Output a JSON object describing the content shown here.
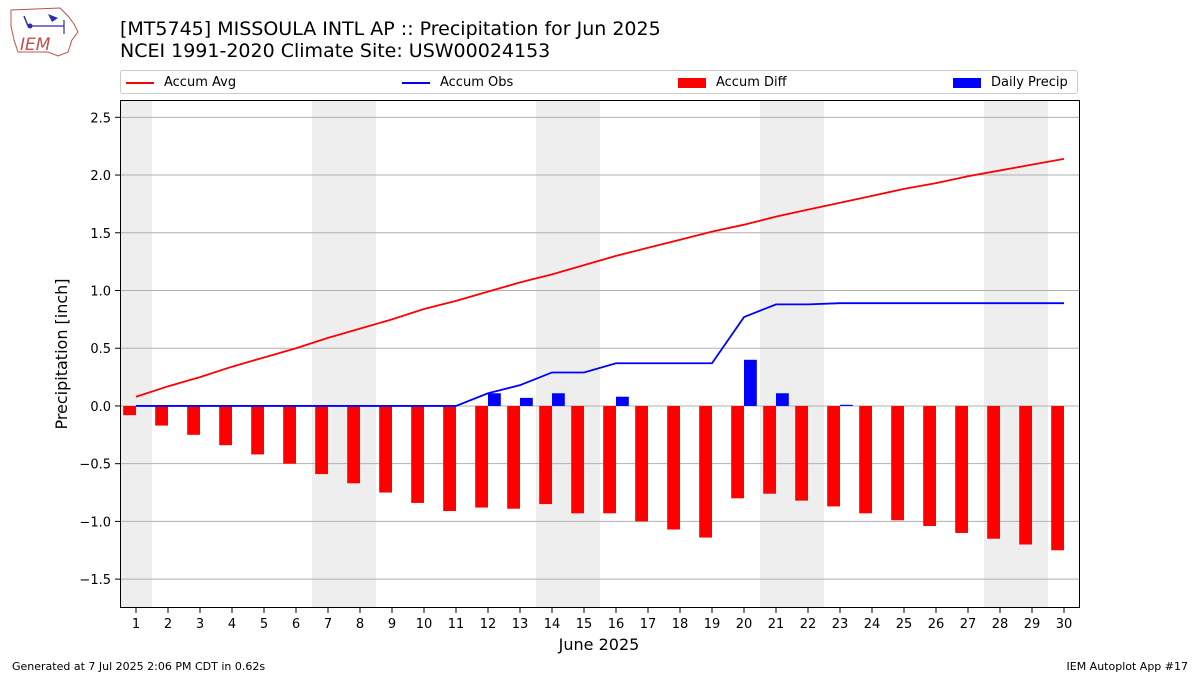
{
  "header": {
    "title_line1": "[MT5745] MISSOULA INTL AP :: Precipitation for Jun 2025",
    "title_line2": "NCEI 1991-2020 Climate Site: USW00024153"
  },
  "logo": {
    "text": "IEM"
  },
  "footer": {
    "left": "Generated at 7 Jul 2025 2:06 PM CDT in 0.62s",
    "right": "IEM Autoplot App #17"
  },
  "legend": [
    {
      "label": "Accum Avg",
      "kind": "line",
      "color": "#ff0000"
    },
    {
      "label": "Accum Obs",
      "kind": "line",
      "color": "#0000ff"
    },
    {
      "label": "Accum Diff",
      "kind": "bar",
      "color": "#ff0000"
    },
    {
      "label": "Daily Precip",
      "kind": "bar",
      "color": "#0000ff"
    }
  ],
  "chart_data": {
    "type": "bar",
    "xlabel": "June 2025",
    "ylabel": "Precipitation [inch]",
    "xlim": [
      0.5,
      30.5
    ],
    "ylim": [
      -1.75,
      2.65
    ],
    "yticks": [
      -1.5,
      -1.0,
      -0.5,
      0.0,
      0.5,
      1.0,
      1.5,
      2.0,
      2.5
    ],
    "ytick_labels": [
      "−1.5",
      "−1.0",
      "−0.5",
      "0.0",
      "0.5",
      "1.0",
      "1.5",
      "2.0",
      "2.5"
    ],
    "grid": "horizontal",
    "weekend_shading": [
      [
        0.5,
        1.5
      ],
      [
        6.5,
        8.5
      ],
      [
        13.5,
        15.5
      ],
      [
        20.5,
        22.5
      ],
      [
        27.5,
        29.5
      ]
    ],
    "days": [
      1,
      2,
      3,
      4,
      5,
      6,
      7,
      8,
      9,
      10,
      11,
      12,
      13,
      14,
      15,
      16,
      17,
      18,
      19,
      20,
      21,
      22,
      23,
      24,
      25,
      26,
      27,
      28,
      29,
      30
    ],
    "series": [
      {
        "name": "Accum Avg",
        "type": "line",
        "color": "#ff0000",
        "values": [
          0.08,
          0.17,
          0.25,
          0.34,
          0.42,
          0.5,
          0.59,
          0.67,
          0.75,
          0.84,
          0.91,
          0.99,
          1.07,
          1.14,
          1.22,
          1.3,
          1.37,
          1.44,
          1.51,
          1.57,
          1.64,
          1.7,
          1.76,
          1.82,
          1.88,
          1.93,
          1.99,
          2.04,
          2.09,
          2.14
        ]
      },
      {
        "name": "Accum Obs",
        "type": "line",
        "color": "#0000ff",
        "values": [
          0,
          0,
          0,
          0,
          0,
          0,
          0,
          0,
          0,
          0,
          0,
          0.11,
          0.18,
          0.29,
          0.29,
          0.37,
          0.37,
          0.37,
          0.37,
          0.77,
          0.88,
          0.88,
          0.89,
          0.89,
          0.89,
          0.89,
          0.89,
          0.89,
          0.89,
          0.89
        ]
      },
      {
        "name": "Accum Diff",
        "type": "bar",
        "color": "#ff0000",
        "values": [
          -0.08,
          -0.17,
          -0.25,
          -0.34,
          -0.42,
          -0.5,
          -0.59,
          -0.67,
          -0.75,
          -0.84,
          -0.91,
          -0.88,
          -0.89,
          -0.85,
          -0.93,
          -0.93,
          -1.0,
          -1.07,
          -1.14,
          -0.8,
          -0.76,
          -0.82,
          -0.87,
          -0.93,
          -0.99,
          -1.04,
          -1.1,
          -1.15,
          -1.2,
          -1.25
        ]
      },
      {
        "name": "Daily Precip",
        "type": "bar",
        "color": "#0000ff",
        "values": [
          0,
          0,
          0,
          0,
          0,
          0,
          0,
          0,
          0,
          0,
          0,
          0.11,
          0.07,
          0.11,
          0,
          0.08,
          0,
          0,
          0,
          0.4,
          0.11,
          0,
          0.01,
          0,
          0,
          0,
          0,
          0,
          0,
          0
        ]
      }
    ]
  }
}
